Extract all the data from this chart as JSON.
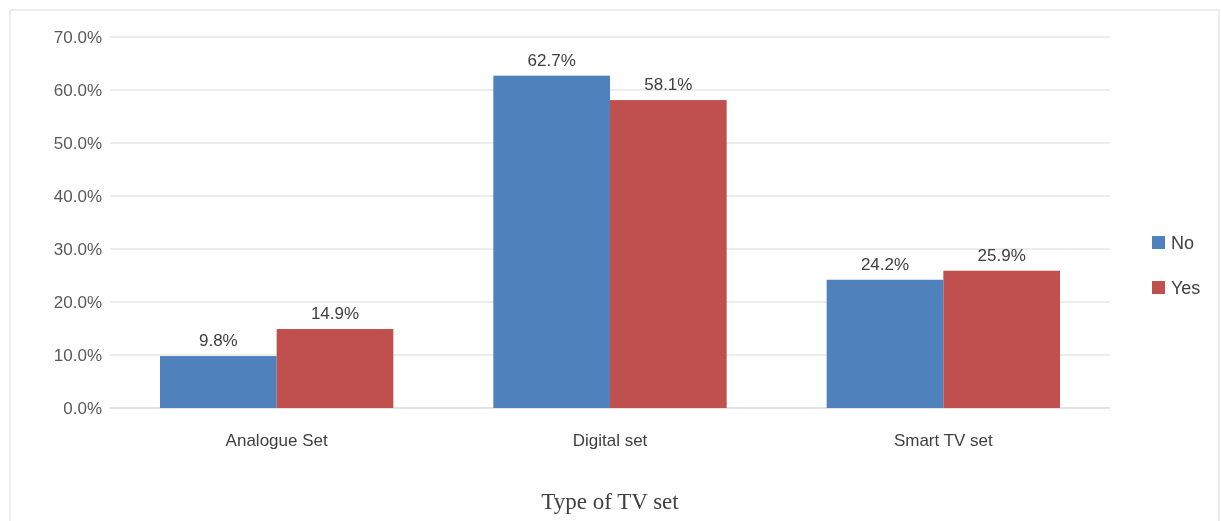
{
  "chart_data": {
    "type": "bar",
    "xlabel": "Type of TV set",
    "categories": [
      "Analogue Set",
      "Digital set",
      "Smart TV set"
    ],
    "series": [
      {
        "name": "No",
        "color": "#4f81bd",
        "values": [
          9.8,
          62.7,
          24.2
        ],
        "value_labels": [
          "9.8%",
          "62.7%",
          "24.2%"
        ]
      },
      {
        "name": "Yes",
        "color": "#c0504d",
        "values": [
          14.9,
          58.1,
          25.9
        ],
        "value_labels": [
          "14.9%",
          "58.1%",
          "25.9%"
        ]
      }
    ],
    "ylim": [
      0,
      70
    ],
    "yticks": [
      {
        "value": 0,
        "label": "0.0%"
      },
      {
        "value": 10,
        "label": "10.0%"
      },
      {
        "value": 20,
        "label": "20.0%"
      },
      {
        "value": 30,
        "label": "30.0%"
      },
      {
        "value": 40,
        "label": "40.0%"
      },
      {
        "value": 50,
        "label": "50.0%"
      },
      {
        "value": 60,
        "label": "60.0%"
      },
      {
        "value": 70,
        "label": "70.0%"
      }
    ],
    "grid": "y",
    "legend": "right"
  }
}
